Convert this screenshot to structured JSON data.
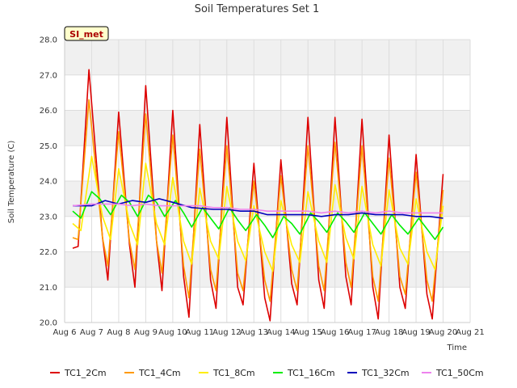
{
  "chart_data": {
    "type": "line",
    "title": "Soil Temperatures Set 1",
    "xlabel": "Time",
    "ylabel": "Soil Temperature (C)",
    "site_label": "SI_met",
    "xlim": [
      6,
      21
    ],
    "ylim": [
      20.0,
      28.0
    ],
    "x_ticks": [
      6,
      7,
      8,
      9,
      10,
      11,
      12,
      13,
      14,
      15,
      16,
      17,
      18,
      19,
      20,
      21
    ],
    "x_tick_labels": [
      "Aug 6",
      "Aug 7",
      "Aug 8",
      "Aug 9",
      "Aug 10",
      "Aug 11",
      "Aug 12",
      "Aug 13",
      "Aug 14",
      "Aug 15",
      "Aug 16",
      "Aug 17",
      "Aug 18",
      "Aug 19",
      "Aug 20",
      "Aug 21"
    ],
    "y_ticks": [
      20.0,
      21.0,
      22.0,
      23.0,
      24.0,
      25.0,
      26.0,
      27.0,
      28.0
    ],
    "y_tick_labels": [
      "20.0",
      "21.0",
      "22.0",
      "23.0",
      "24.0",
      "25.0",
      "26.0",
      "27.0",
      "28.0"
    ],
    "grid": true,
    "legend_position": "bottom",
    "colors": {
      "background_band": "#f0f0f0",
      "grid": "#dddddd",
      "badge_fill": "#ffffcc",
      "badge_border": "#000000"
    },
    "series": [
      {
        "name": "TC1_2Cm",
        "color": "#dd0000",
        "x": [
          6.3,
          6.5,
          6.9,
          7.4,
          7.6,
          8.0,
          8.4,
          8.6,
          9.0,
          9.4,
          9.6,
          10.0,
          10.4,
          10.6,
          11.0,
          11.4,
          11.6,
          12.0,
          12.4,
          12.6,
          13.0,
          13.4,
          13.6,
          14.0,
          14.4,
          14.6,
          15.0,
          15.4,
          15.6,
          16.0,
          16.4,
          16.6,
          17.0,
          17.4,
          17.6,
          18.0,
          18.4,
          18.6,
          19.0,
          19.4,
          19.6,
          20.0
        ],
        "y": [
          22.1,
          22.15,
          27.15,
          22.4,
          21.2,
          25.95,
          22.2,
          21.0,
          26.7,
          22.3,
          20.9,
          26.0,
          21.3,
          20.15,
          25.6,
          21.2,
          20.4,
          25.8,
          21.0,
          20.5,
          24.5,
          20.7,
          20.05,
          24.6,
          21.1,
          20.5,
          25.8,
          21.2,
          20.4,
          25.8,
          21.3,
          20.5,
          25.75,
          21.0,
          20.1,
          25.3,
          21.0,
          20.4,
          24.75,
          20.8,
          20.1,
          24.2
        ]
      },
      {
        "name": "TC1_4Cm",
        "color": "#ff9900",
        "x": [
          6.3,
          6.5,
          6.9,
          7.4,
          7.6,
          8.0,
          8.4,
          8.6,
          9.0,
          9.4,
          9.6,
          10.0,
          10.4,
          10.6,
          11.0,
          11.4,
          11.6,
          12.0,
          12.4,
          12.6,
          13.0,
          13.4,
          13.6,
          14.0,
          14.4,
          14.6,
          15.0,
          15.4,
          15.6,
          16.0,
          16.4,
          16.6,
          17.0,
          17.4,
          17.6,
          18.0,
          18.4,
          18.6,
          19.0,
          19.4,
          19.6,
          20.0
        ],
        "y": [
          22.4,
          22.35,
          26.3,
          22.4,
          21.6,
          25.4,
          22.3,
          21.5,
          25.9,
          22.3,
          21.4,
          25.3,
          21.6,
          20.7,
          24.9,
          21.5,
          20.9,
          25.0,
          21.4,
          20.9,
          24.0,
          21.2,
          20.6,
          24.15,
          21.5,
          20.9,
          25.0,
          21.6,
          20.9,
          25.1,
          21.7,
          21.0,
          25.0,
          21.3,
          20.6,
          24.65,
          21.3,
          20.8,
          24.25,
          21.2,
          20.6,
          23.75
        ]
      },
      {
        "name": "TC1_8Cm",
        "color": "#ffee00",
        "x": [
          6.3,
          6.6,
          7.0,
          7.4,
          7.7,
          8.0,
          8.4,
          8.7,
          9.0,
          9.4,
          9.7,
          10.0,
          10.4,
          10.7,
          11.0,
          11.4,
          11.7,
          12.0,
          12.4,
          12.7,
          13.0,
          13.4,
          13.7,
          14.0,
          14.4,
          14.7,
          15.0,
          15.4,
          15.7,
          16.0,
          16.4,
          16.7,
          17.0,
          17.4,
          17.7,
          18.0,
          18.4,
          18.7,
          19.0,
          19.4,
          19.7,
          20.0
        ],
        "y": [
          22.8,
          22.6,
          24.7,
          23.0,
          22.35,
          24.35,
          22.8,
          22.2,
          24.5,
          22.8,
          22.2,
          24.1,
          22.3,
          21.65,
          23.8,
          22.3,
          21.8,
          23.85,
          22.3,
          21.75,
          23.3,
          22.0,
          21.45,
          23.45,
          22.2,
          21.7,
          23.7,
          22.3,
          21.7,
          23.9,
          22.4,
          21.8,
          23.85,
          22.2,
          21.6,
          23.75,
          22.1,
          21.65,
          23.5,
          22.0,
          21.5,
          23.3
        ]
      },
      {
        "name": "TC1_16Cm",
        "color": "#00ee00",
        "x": [
          6.3,
          6.6,
          7.0,
          7.3,
          7.7,
          8.1,
          8.4,
          8.7,
          9.1,
          9.4,
          9.7,
          10.1,
          10.4,
          10.7,
          11.1,
          11.4,
          11.7,
          12.1,
          12.4,
          12.7,
          13.1,
          13.4,
          13.7,
          14.1,
          14.4,
          14.7,
          15.1,
          15.4,
          15.7,
          16.1,
          16.4,
          16.7,
          17.1,
          17.4,
          17.7,
          18.1,
          18.4,
          18.7,
          19.1,
          19.4,
          19.7,
          20.0
        ],
        "y": [
          23.15,
          22.95,
          23.7,
          23.5,
          23.05,
          23.6,
          23.4,
          23.0,
          23.6,
          23.4,
          23.0,
          23.45,
          23.1,
          22.7,
          23.25,
          22.95,
          22.65,
          23.25,
          22.9,
          22.6,
          23.05,
          22.75,
          22.4,
          23.0,
          22.8,
          22.5,
          23.1,
          22.85,
          22.55,
          23.1,
          22.85,
          22.55,
          23.1,
          22.8,
          22.5,
          23.05,
          22.75,
          22.5,
          22.95,
          22.65,
          22.35,
          22.7
        ]
      },
      {
        "name": "TC1_32Cm",
        "color": "#0000bb",
        "x": [
          6.3,
          7.0,
          7.5,
          8.0,
          8.5,
          9.0,
          9.5,
          10.0,
          10.7,
          11.5,
          12.0,
          12.5,
          13.0,
          13.5,
          14.0,
          14.5,
          15.0,
          15.5,
          16.0,
          16.5,
          17.0,
          17.5,
          18.0,
          18.5,
          19.0,
          19.5,
          20.0
        ],
        "y": [
          23.3,
          23.3,
          23.45,
          23.35,
          23.45,
          23.4,
          23.5,
          23.4,
          23.25,
          23.2,
          23.2,
          23.15,
          23.15,
          23.05,
          23.05,
          23.05,
          23.05,
          23.0,
          23.05,
          23.05,
          23.1,
          23.05,
          23.05,
          23.05,
          23.0,
          23.0,
          22.95
        ]
      },
      {
        "name": "TC1_50Cm",
        "color": "#ee82ee",
        "x": [
          6.3,
          7.0,
          7.5,
          8.0,
          8.5,
          9.0,
          9.5,
          10.0,
          10.5,
          11.0,
          11.5,
          12.0,
          12.5,
          13.0,
          13.5,
          14.0,
          14.5,
          15.0,
          15.5,
          16.0,
          16.5,
          17.0,
          17.5,
          18.0,
          18.5,
          19.0,
          19.5,
          20.0
        ],
        "y": [
          23.3,
          23.35,
          23.35,
          23.35,
          23.3,
          23.35,
          23.3,
          23.3,
          23.3,
          23.3,
          23.25,
          23.25,
          23.2,
          23.2,
          23.15,
          23.15,
          23.15,
          23.15,
          23.1,
          23.15,
          23.1,
          23.15,
          23.1,
          23.15,
          23.1,
          23.1,
          23.1,
          23.1
        ]
      }
    ]
  }
}
